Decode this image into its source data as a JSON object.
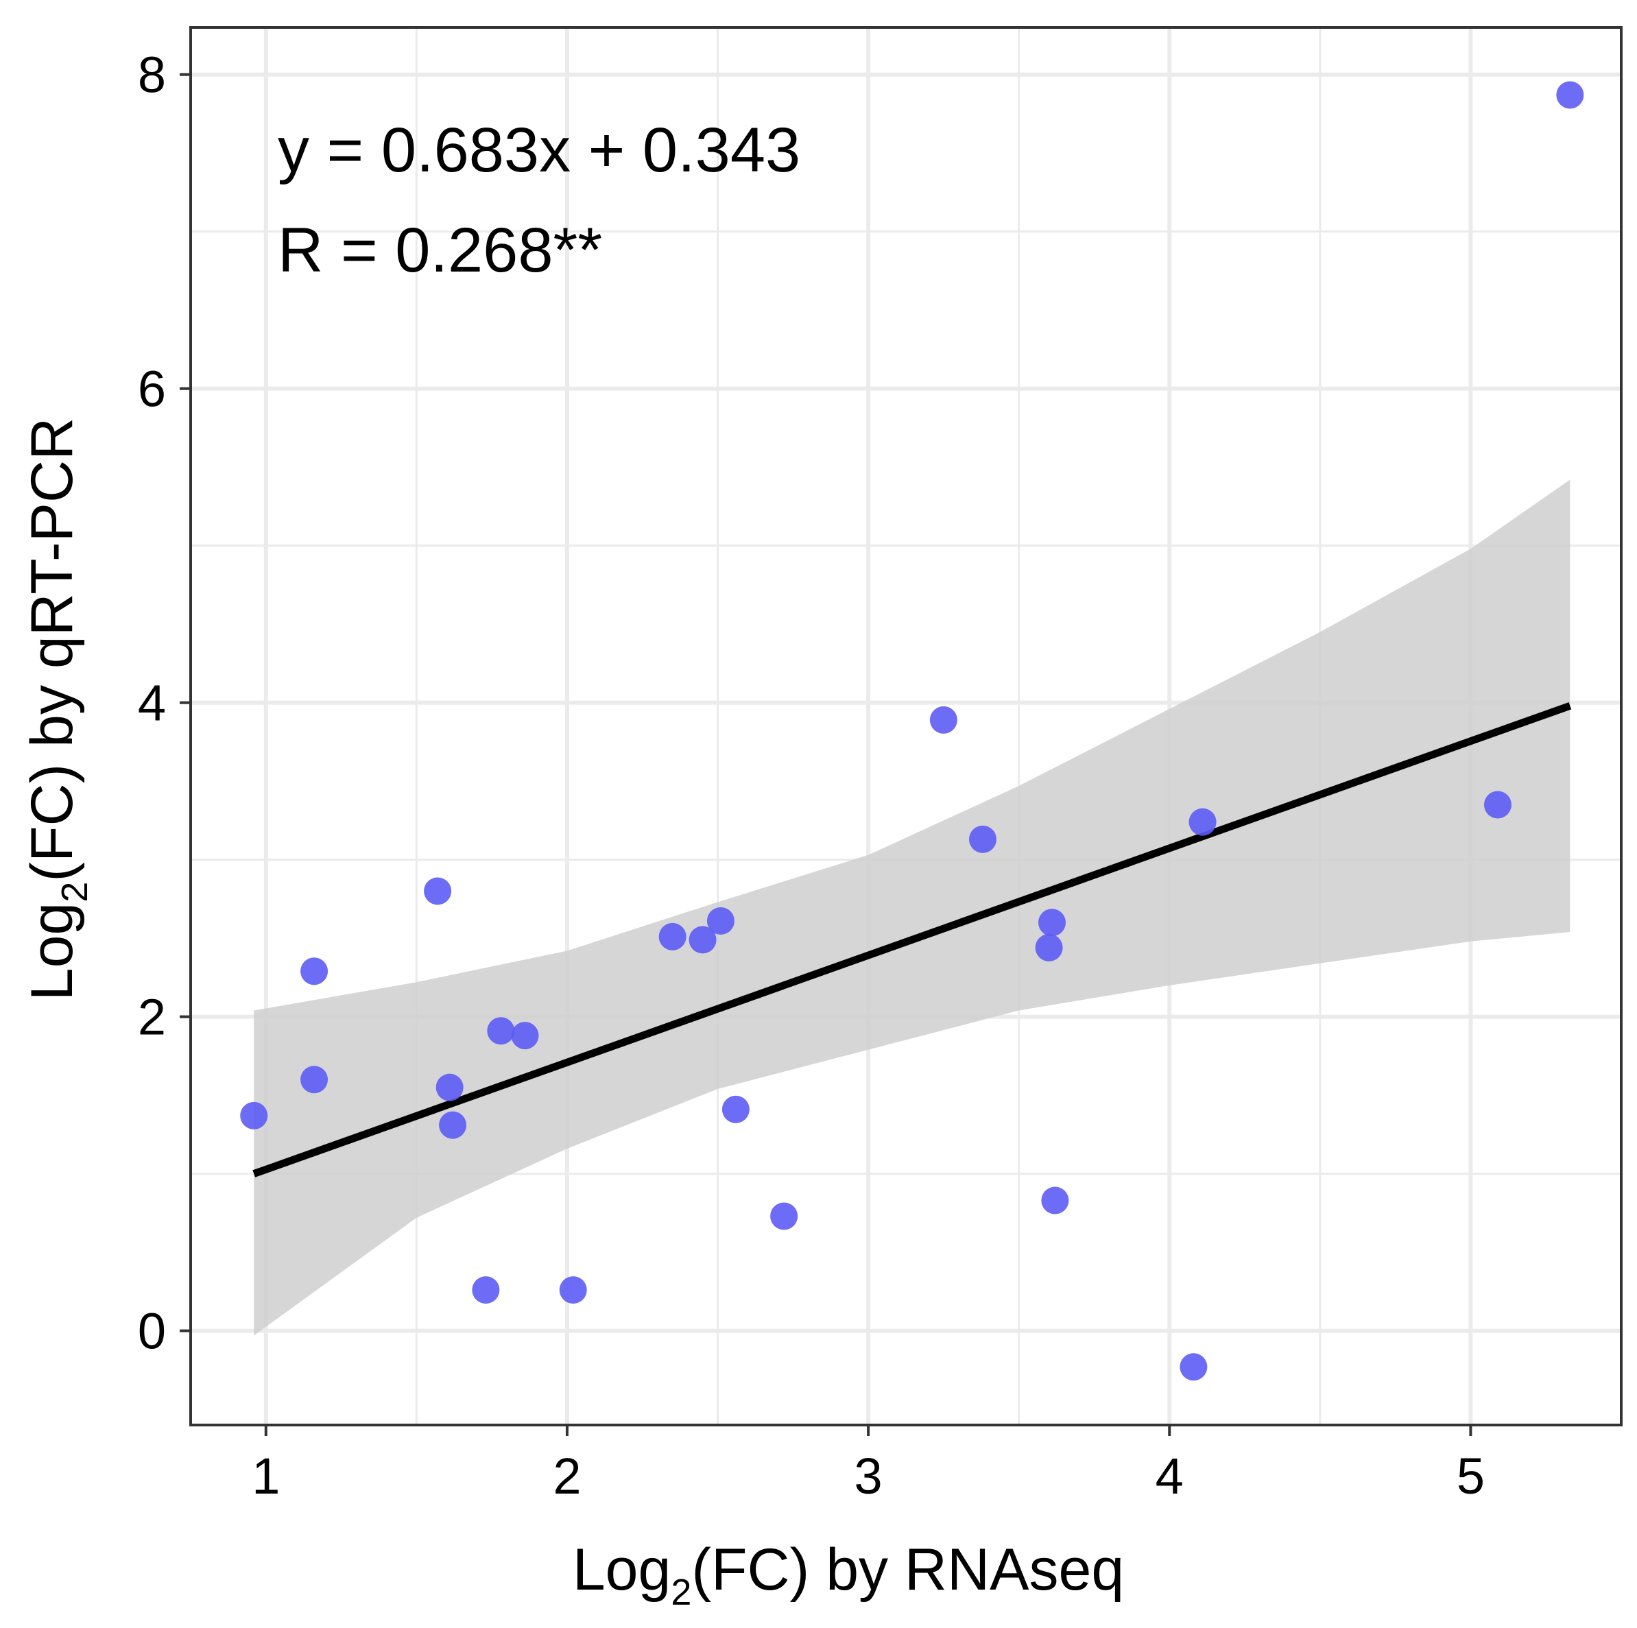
{
  "chart_data": {
    "type": "scatter",
    "xlabel": {
      "prefix": "Log",
      "sub": "2",
      "suffix": "(FC) by RNAseq"
    },
    "ylabel": {
      "prefix": "Log",
      "sub": "2",
      "suffix": "(FC) by qRT-PCR"
    },
    "xlim": [
      0.75,
      5.5
    ],
    "ylim": [
      -0.6,
      8.3
    ],
    "x_ticks": [
      1,
      2,
      3,
      4,
      5
    ],
    "y_ticks": [
      0,
      2,
      4,
      6,
      8
    ],
    "x_minor": [
      1.5,
      2.5,
      3.5,
      4.5
    ],
    "y_minor": [
      1,
      3,
      5,
      7
    ],
    "grid": true,
    "points": [
      {
        "x": 0.96,
        "y": 1.37
      },
      {
        "x": 1.16,
        "y": 1.6
      },
      {
        "x": 1.16,
        "y": 2.29
      },
      {
        "x": 1.57,
        "y": 2.8
      },
      {
        "x": 1.61,
        "y": 1.55
      },
      {
        "x": 1.62,
        "y": 1.31
      },
      {
        "x": 1.73,
        "y": 0.26
      },
      {
        "x": 1.78,
        "y": 1.91
      },
      {
        "x": 1.86,
        "y": 1.88
      },
      {
        "x": 2.02,
        "y": 0.26
      },
      {
        "x": 2.35,
        "y": 2.51
      },
      {
        "x": 2.45,
        "y": 2.49
      },
      {
        "x": 2.51,
        "y": 2.61
      },
      {
        "x": 2.56,
        "y": 1.41
      },
      {
        "x": 2.72,
        "y": 0.73
      },
      {
        "x": 3.25,
        "y": 3.89
      },
      {
        "x": 3.38,
        "y": 3.13
      },
      {
        "x": 3.6,
        "y": 2.44
      },
      {
        "x": 3.61,
        "y": 2.6
      },
      {
        "x": 3.62,
        "y": 0.83
      },
      {
        "x": 4.08,
        "y": -0.23
      },
      {
        "x": 4.11,
        "y": 3.24
      },
      {
        "x": 5.09,
        "y": 3.35
      },
      {
        "x": 5.33,
        "y": 7.87
      }
    ],
    "fit": {
      "x0": 0.96,
      "y0": 1.0,
      "x1": 5.33,
      "y1": 3.98
    },
    "ci_upper": [
      {
        "x": 0.96,
        "y": 2.04
      },
      {
        "x": 1.5,
        "y": 2.22
      },
      {
        "x": 2.0,
        "y": 2.42
      },
      {
        "x": 2.5,
        "y": 2.73
      },
      {
        "x": 3.0,
        "y": 3.03
      },
      {
        "x": 3.5,
        "y": 3.47
      },
      {
        "x": 4.0,
        "y": 3.96
      },
      {
        "x": 4.5,
        "y": 4.45
      },
      {
        "x": 5.0,
        "y": 4.98
      },
      {
        "x": 5.33,
        "y": 5.42
      }
    ],
    "ci_lower": [
      {
        "x": 0.96,
        "y": -0.03
      },
      {
        "x": 1.5,
        "y": 0.72
      },
      {
        "x": 2.0,
        "y": 1.16
      },
      {
        "x": 2.5,
        "y": 1.54
      },
      {
        "x": 3.0,
        "y": 1.79
      },
      {
        "x": 3.5,
        "y": 2.04
      },
      {
        "x": 4.0,
        "y": 2.2
      },
      {
        "x": 4.5,
        "y": 2.34
      },
      {
        "x": 5.0,
        "y": 2.48
      },
      {
        "x": 5.33,
        "y": 2.54
      }
    ],
    "annotations": {
      "equation": "y = 0.683x + 0.343",
      "correlation": "R = 0.268**"
    },
    "colors": {
      "point": "#5c5cf5",
      "fit_line": "#000000",
      "ci_band": "#cfcfcf",
      "grid": "#ebebeb",
      "frame": "#333333"
    }
  }
}
